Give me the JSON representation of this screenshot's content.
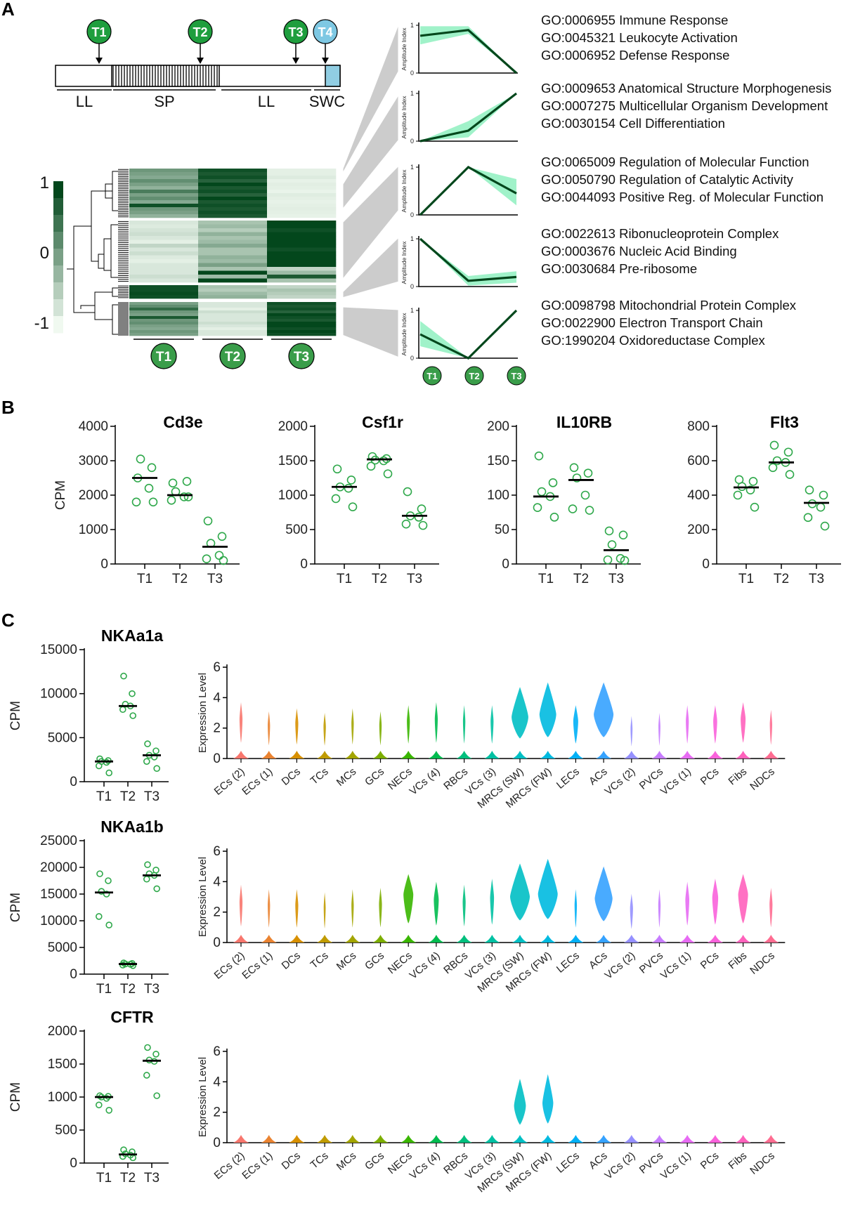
{
  "panels": {
    "a": "A",
    "b": "B",
    "c": "C"
  },
  "timeline": {
    "markers": [
      "T1",
      "T2",
      "T3",
      "T4"
    ],
    "segments": [
      "LL",
      "SP",
      "LL",
      "SWC"
    ]
  },
  "heatmap": {
    "scale_labels": [
      "1",
      "0",
      "-1"
    ],
    "columns": [
      "T1",
      "T2",
      "T3"
    ],
    "clusters": [
      {
        "rows": [
          [
            0.55,
            0.95,
            0.05
          ],
          [
            0.5,
            0.9,
            0.05
          ],
          [
            0.45,
            0.95,
            0.08
          ],
          [
            0.6,
            0.85,
            0.04
          ],
          [
            0.5,
            1.0,
            0.06
          ],
          [
            0.4,
            0.9,
            0.05
          ],
          [
            0.7,
            0.95,
            0.03
          ],
          [
            0.5,
            0.85,
            0.07
          ],
          [
            0.6,
            1.0,
            0.05
          ],
          [
            0.45,
            0.9,
            0.04
          ],
          [
            0.95,
            0.95,
            0.05
          ],
          [
            0.55,
            0.9,
            0.06
          ],
          [
            0.5,
            0.95,
            0.05
          ],
          [
            0.4,
            0.9,
            0.04
          ]
        ]
      },
      {
        "rows": [
          [
            0.1,
            0.3,
            1.0
          ],
          [
            0.08,
            0.35,
            1.0
          ],
          [
            0.12,
            0.25,
            0.95
          ],
          [
            0.15,
            0.4,
            1.0
          ],
          [
            0.1,
            0.3,
            1.0
          ],
          [
            0.05,
            0.35,
            1.0
          ],
          [
            0.2,
            0.45,
            1.0
          ],
          [
            0.1,
            0.3,
            0.95
          ],
          [
            0.15,
            0.3,
            1.0
          ],
          [
            0.08,
            0.4,
            1.0
          ],
          [
            0.05,
            0.35,
            1.0
          ],
          [
            0.1,
            0.5,
            1.0
          ],
          [
            0.1,
            0.3,
            0.2
          ],
          [
            0.1,
            1.0,
            0.35
          ],
          [
            0.15,
            0.35,
            0.9
          ],
          [
            0.1,
            1.0,
            0.3
          ]
        ]
      },
      {
        "rows": [
          [
            0.95,
            0.3,
            0.2
          ],
          [
            0.95,
            0.25,
            0.3
          ],
          [
            0.98,
            0.35,
            0.25
          ],
          [
            0.95,
            0.4,
            0.2
          ]
        ]
      },
      {
        "rows": [
          [
            0.5,
            0.1,
            0.95
          ],
          [
            0.6,
            0.1,
            0.9
          ],
          [
            0.8,
            0.05,
            0.95
          ],
          [
            0.55,
            0.15,
            0.85
          ],
          [
            0.5,
            0.1,
            1.0
          ],
          [
            0.9,
            0.1,
            0.95
          ],
          [
            0.55,
            0.1,
            0.9
          ],
          [
            0.6,
            0.15,
            1.0
          ],
          [
            0.5,
            0.1,
            1.0
          ],
          [
            0.45,
            0.05,
            0.95
          ],
          [
            0.55,
            0.1,
            1.0
          ],
          [
            0.5,
            0.1,
            0.95
          ]
        ]
      }
    ]
  },
  "modules": [
    {
      "yaxis": "Amplitude Index",
      "mean": [
        0.78,
        0.9,
        0.0
      ],
      "lo": [
        0.6,
        0.82,
        0.0
      ],
      "hi": [
        0.98,
        0.98,
        0.0
      ],
      "go_terms": [
        "GO:0006955 Immune Response",
        "GO:0045321 Leukocyte Activation",
        "GO:0006952 Defense Response"
      ]
    },
    {
      "yaxis": "Amplitude Index",
      "mean": [
        0.0,
        0.22,
        1.0
      ],
      "lo": [
        0.0,
        0.08,
        1.0
      ],
      "hi": [
        0.0,
        0.42,
        1.0
      ],
      "go_terms": [
        "GO:0009653 Anatomical Structure Morphogenesis",
        "GO:0007275 Multicellular Organism Development",
        "GO:0030154 Cell Differentiation"
      ]
    },
    {
      "yaxis": "Amplitude Index",
      "mean": [
        0.0,
        1.0,
        0.45
      ],
      "lo": [
        0.0,
        1.0,
        0.2
      ],
      "hi": [
        0.0,
        1.0,
        0.75
      ],
      "go_terms": [
        "GO:0065009 Regulation of Molecular Function",
        "GO:0050790 Regulation of Catalytic Activity",
        "GO:0044093 Positive Reg. of Molecular Function"
      ]
    },
    {
      "yaxis": "Amplitude Index",
      "mean": [
        1.0,
        0.12,
        0.2
      ],
      "lo": [
        1.0,
        0.02,
        0.08
      ],
      "hi": [
        1.0,
        0.22,
        0.32
      ],
      "go_terms": [
        "GO:0022613 Ribonucleoprotein Complex",
        "GO:0003676 Nucleic Acid Binding",
        "GO:0030684 Pre-ribosome"
      ]
    },
    {
      "yaxis": "Amplitude Index",
      "mean": [
        0.5,
        0.0,
        1.0
      ],
      "lo": [
        0.25,
        0.0,
        1.0
      ],
      "hi": [
        0.78,
        0.0,
        1.0
      ],
      "go_terms": [
        "GO:0098798 Mitochondrial Protein Complex",
        "GO:0022900 Electron Transport Chain",
        "GO:1990204 Oxidoreductase Complex"
      ]
    }
  ],
  "module_x": [
    "T1",
    "T2",
    "T3"
  ],
  "module_ticks": [
    "0",
    "1"
  ],
  "chart_data": [
    {
      "type": "scatter",
      "title": "Cd3e",
      "ylabel": "CPM",
      "categories": [
        "T1",
        "T2",
        "T3"
      ],
      "ylim": [
        0,
        4000
      ],
      "yticks": [
        0,
        1000,
        2000,
        3000,
        4000
      ],
      "points": [
        [
          2500,
          2800,
          3050,
          2200,
          1800,
          1800
        ],
        [
          2350,
          2400,
          2100,
          1950,
          1850,
          1950
        ],
        [
          1250,
          800,
          600,
          250,
          150,
          100
        ]
      ],
      "medians": [
        2500,
        2000,
        500
      ]
    },
    {
      "type": "scatter",
      "title": "Csf1r",
      "ylabel": "",
      "categories": [
        "T1",
        "T2",
        "T3"
      ],
      "ylim": [
        0,
        2000
      ],
      "yticks": [
        0,
        500,
        1000,
        1500,
        2000
      ],
      "points": [
        [
          1380,
          1220,
          1120,
          1100,
          950,
          830
        ],
        [
          1560,
          1530,
          1510,
          1500,
          1420,
          1310
        ],
        [
          1050,
          800,
          700,
          680,
          580,
          560
        ]
      ],
      "medians": [
        1120,
        1520,
        700
      ]
    },
    {
      "type": "scatter",
      "title": "IL10RB",
      "ylabel": "",
      "categories": [
        "T1",
        "T2",
        "T3"
      ],
      "ylim": [
        0,
        200
      ],
      "yticks": [
        0,
        50,
        100,
        150,
        200
      ],
      "points": [
        [
          157,
          118,
          105,
          98,
          82,
          68
        ],
        [
          140,
          132,
          125,
          100,
          80,
          78
        ],
        [
          48,
          42,
          28,
          8,
          6,
          5
        ]
      ],
      "medians": [
        98,
        122,
        20
      ]
    },
    {
      "type": "scatter",
      "title": "Flt3",
      "ylabel": "",
      "categories": [
        "T1",
        "T2",
        "T3"
      ],
      "ylim": [
        0,
        800
      ],
      "yticks": [
        0,
        200,
        400,
        600,
        800
      ],
      "points": [
        [
          490,
          480,
          450,
          430,
          400,
          330
        ],
        [
          690,
          650,
          600,
          590,
          560,
          520
        ],
        [
          430,
          400,
          350,
          330,
          270,
          220
        ]
      ],
      "medians": [
        445,
        590,
        355
      ]
    },
    {
      "type": "scatter",
      "title": "NKAa1a",
      "ylabel": "CPM",
      "categories": [
        "T1",
        "T2",
        "T3"
      ],
      "ylim": [
        0,
        15000
      ],
      "yticks": [
        0,
        5000,
        10000,
        15000
      ],
      "points": [
        [
          2600,
          2400,
          2300,
          2200,
          1800,
          1000
        ],
        [
          12000,
          10000,
          8800,
          8600,
          8200,
          7500
        ],
        [
          4300,
          3500,
          3000,
          2800,
          2300,
          1500
        ]
      ],
      "medians": [
        2300,
        8600,
        3000
      ]
    },
    {
      "type": "scatter",
      "title": "NKAa1b",
      "ylabel": "CPM",
      "categories": [
        "T1",
        "T2",
        "T3"
      ],
      "ylim": [
        0,
        25000
      ],
      "yticks": [
        0,
        5000,
        10000,
        15000,
        20000,
        25000
      ],
      "points": [
        [
          18800,
          17500,
          15500,
          15000,
          10800,
          9200
        ],
        [
          2100,
          2000,
          1900,
          1850,
          1700,
          1600
        ],
        [
          20500,
          19500,
          18800,
          18500,
          17800,
          16000
        ]
      ],
      "medians": [
        15300,
        1900,
        18500
      ]
    },
    {
      "type": "scatter",
      "title": "CFTR",
      "ylabel": "CPM",
      "categories": [
        "T1",
        "T2",
        "T3"
      ],
      "ylim": [
        0,
        2000
      ],
      "yticks": [
        0,
        500,
        1000,
        1500,
        2000
      ],
      "points": [
        [
          1020,
          1010,
          1000,
          980,
          880,
          800
        ],
        [
          200,
          170,
          140,
          120,
          100,
          80
        ],
        [
          1750,
          1650,
          1560,
          1540,
          1330,
          1020
        ]
      ],
      "medians": [
        1000,
        130,
        1550
      ]
    },
    {
      "type": "violin",
      "ylabel": "Expression Level",
      "ylim": [
        0,
        6
      ],
      "yticks": [
        0,
        2,
        4,
        6
      ],
      "categories": [
        "ECs (2)",
        "ECs (1)",
        "DCs",
        "TCs",
        "MCs",
        "GCs",
        "NECs",
        "VCs (4)",
        "RBCs",
        "VCs (3)",
        "MRCs (SW)",
        "MRCs (FW)",
        "LECs",
        "ACs",
        "VCs (2)",
        "PVCs",
        "VCs (1)",
        "PCs",
        "Fibs",
        "NDCs"
      ],
      "max": [
        3.7,
        3.1,
        3.3,
        3.0,
        3.3,
        3.1,
        3.5,
        3.7,
        3.5,
        3.5,
        4.7,
        5.0,
        3.5,
        5.0,
        2.8,
        3.0,
        3.5,
        3.5,
        3.7,
        3.2
      ],
      "upper_width": [
        0.15,
        0.12,
        0.15,
        0.12,
        0.12,
        0.12,
        0.15,
        0.15,
        0.12,
        0.15,
        0.85,
        0.85,
        0.25,
        1.0,
        0.1,
        0.1,
        0.15,
        0.2,
        0.25,
        0.12
      ]
    },
    {
      "type": "violin",
      "ylabel": "Expression Level",
      "ylim": [
        0,
        6
      ],
      "yticks": [
        0,
        2,
        4,
        6
      ],
      "categories": [
        "ECs (2)",
        "ECs (1)",
        "DCs",
        "TCs",
        "MCs",
        "GCs",
        "NECs",
        "VCs (4)",
        "RBCs",
        "VCs (3)",
        "MRCs (SW)",
        "MRCs (FW)",
        "LECs",
        "ACs",
        "VCs (2)",
        "PVCs",
        "VCs (1)",
        "PCs",
        "Fibs",
        "NDCs"
      ],
      "max": [
        3.8,
        3.5,
        3.5,
        3.3,
        3.5,
        3.6,
        4.5,
        4.0,
        3.8,
        4.2,
        5.2,
        5.5,
        3.5,
        5.0,
        3.2,
        3.5,
        4.0,
        4.2,
        4.5,
        3.6
      ],
      "upper_width": [
        0.15,
        0.12,
        0.15,
        0.1,
        0.12,
        0.15,
        0.5,
        0.25,
        0.15,
        0.2,
        1.0,
        1.0,
        0.12,
        0.9,
        0.15,
        0.12,
        0.2,
        0.3,
        0.5,
        0.15
      ]
    },
    {
      "type": "violin",
      "ylabel": "Expression Level",
      "ylim": [
        0,
        6
      ],
      "yticks": [
        0,
        2,
        4,
        6
      ],
      "categories": [
        "ECs (2)",
        "ECs (1)",
        "DCs",
        "TCs",
        "MCs",
        "GCs",
        "NECs",
        "VCs (4)",
        "RBCs",
        "VCs (3)",
        "MRCs (SW)",
        "MRCs (FW)",
        "LECs",
        "ACs",
        "VCs (2)",
        "PVCs",
        "VCs (1)",
        "PCs",
        "Fibs",
        "NDCs"
      ],
      "max": [
        0,
        0,
        0,
        0,
        0,
        0,
        0,
        0,
        0,
        0,
        4.2,
        4.5,
        0,
        0,
        0,
        0,
        0,
        0,
        0,
        0
      ],
      "upper_width": [
        0,
        0,
        0,
        0,
        0,
        0,
        0,
        0,
        0,
        0,
        0.6,
        0.55,
        0,
        0,
        0,
        0,
        0,
        0,
        0,
        0
      ]
    }
  ],
  "violin_colors": [
    "#F8766D",
    "#EA8331",
    "#D89000",
    "#C09B00",
    "#A3A500",
    "#7CAE00",
    "#39B600",
    "#00BB4E",
    "#00BF7D",
    "#00C1A3",
    "#00BFC4",
    "#00BAE0",
    "#00B0F6",
    "#35A2FF",
    "#9590FF",
    "#C77CFF",
    "#E76BF3",
    "#FA62DB",
    "#FF62BC",
    "#FF6C91"
  ],
  "colors": {
    "dark_green": "#03471c",
    "ribbon": "#8ff0c0",
    "point": "#2ea84a",
    "marker_green": "#1f9e3e",
    "marker_blue": "#7ec8e3",
    "swc_fill": "#90cde2"
  }
}
